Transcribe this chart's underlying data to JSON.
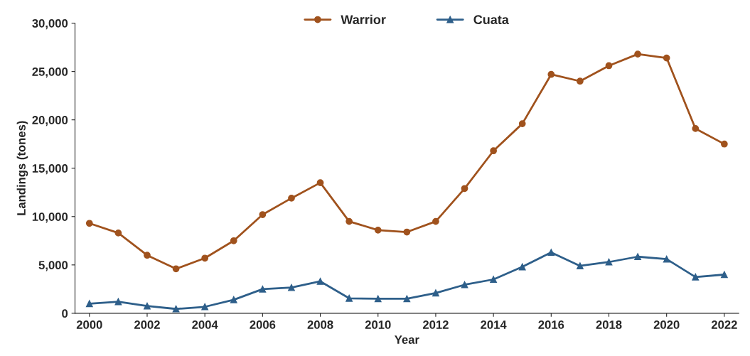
{
  "chart_data": {
    "type": "line",
    "xlabel": "Year",
    "ylabel": "Landings (tones)",
    "x": [
      2000,
      2001,
      2002,
      2003,
      2004,
      2005,
      2006,
      2007,
      2008,
      2009,
      2010,
      2011,
      2012,
      2013,
      2014,
      2015,
      2016,
      2017,
      2018,
      2019,
      2020,
      2021,
      2022
    ],
    "series": [
      {
        "name": "Warrior",
        "color": "#a0521d",
        "marker": "circle",
        "values": [
          9300,
          8300,
          6000,
          4600,
          5700,
          7500,
          10200,
          11900,
          13500,
          9500,
          8600,
          8400,
          9500,
          12900,
          16800,
          19600,
          24700,
          24000,
          25600,
          26800,
          26400,
          19100,
          17500
        ]
      },
      {
        "name": "Cuata",
        "color": "#2e5f8a",
        "marker": "triangle",
        "values": [
          1000,
          1200,
          750,
          450,
          670,
          1400,
          2500,
          2660,
          3300,
          1550,
          1500,
          1500,
          2100,
          2950,
          3500,
          4800,
          6300,
          4900,
          5300,
          5850,
          5600,
          3750,
          4000
        ]
      }
    ],
    "xlim": [
      1999.5,
      2022.5
    ],
    "xticks": [
      2000,
      2002,
      2004,
      2006,
      2008,
      2010,
      2012,
      2014,
      2016,
      2018,
      2020,
      2022
    ],
    "ylim": [
      0,
      30000
    ],
    "yticks": [
      {
        "value": 0,
        "label": "0"
      },
      {
        "value": 5000,
        "label": "5,000"
      },
      {
        "value": 10000,
        "label": "10,000"
      },
      {
        "value": 15000,
        "label": "15,000"
      },
      {
        "value": 20000,
        "label": "20,000"
      },
      {
        "value": 25000,
        "label": "25,000"
      },
      {
        "value": 30000,
        "label": "30,000"
      }
    ],
    "grid": false,
    "legend": "top",
    "line_style": "solid"
  }
}
